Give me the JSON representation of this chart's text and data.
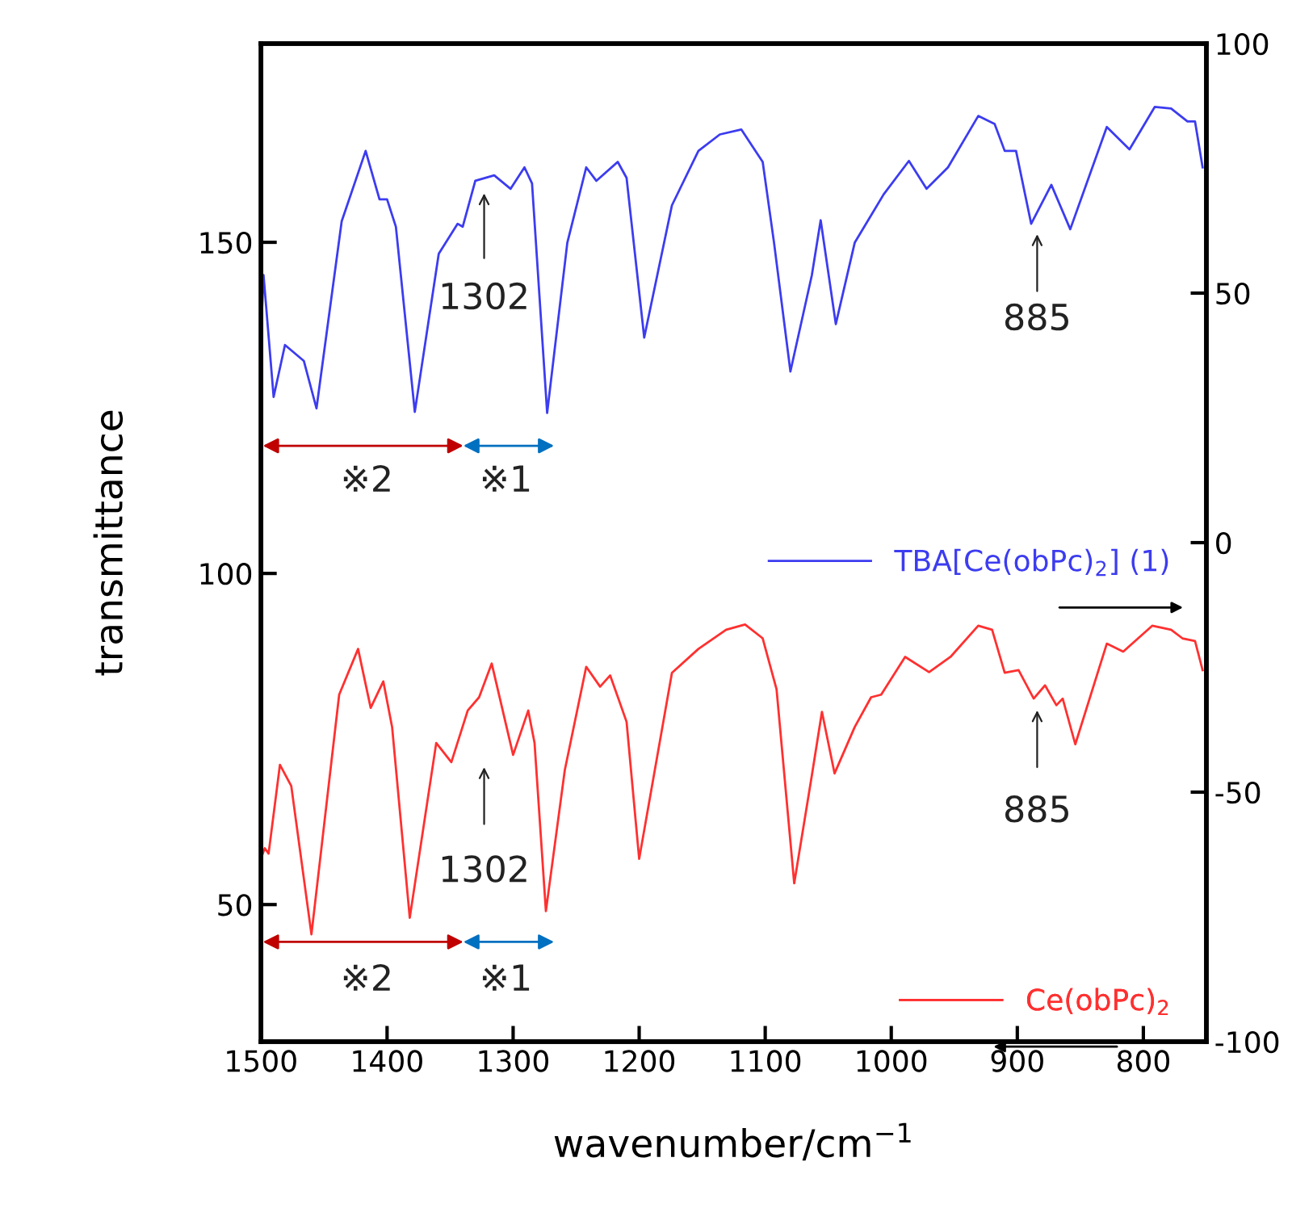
{
  "chart_data": {
    "type": "line",
    "xlabel": "wavenumber/cm$^{−1}$",
    "ylabel": "transmittance",
    "xlim": [
      1500,
      750
    ],
    "xticks": [
      1500,
      1400,
      1300,
      1200,
      1100,
      1000,
      900,
      800
    ],
    "ylim": [
      29.3,
      180
    ],
    "yticks": [
      50,
      100,
      150
    ],
    "y2lim": [
      -100,
      100
    ],
    "y2ticks": [
      -100,
      -50,
      0,
      50,
      100
    ],
    "legend": "right",
    "grid": false,
    "marker": "none",
    "line_style": "solid",
    "series": [
      {
        "name": "TBA[Ce(obPc)$_{2}$] (1)",
        "color": "#3c3cf0",
        "axis": "y2",
        "x": [
          1500,
          1498,
          1490,
          1481,
          1466,
          1456,
          1436,
          1417,
          1406,
          1400,
          1393,
          1378,
          1359,
          1344,
          1340,
          1330,
          1315,
          1302,
          1291,
          1285,
          1273,
          1257,
          1242,
          1234,
          1217,
          1210,
          1196,
          1174,
          1153,
          1136,
          1119,
          1102,
          1093,
          1080,
          1063,
          1056,
          1044,
          1029,
          1006,
          986,
          972,
          955,
          931,
          918,
          910,
          901,
          889,
          873,
          858,
          829,
          811,
          791,
          778,
          765,
          759,
          753
        ],
        "values": [
          42,
          53.6,
          29.2,
          39.6,
          36.4,
          26.9,
          64.4,
          78.5,
          68.8,
          68.8,
          63.3,
          26.2,
          57.9,
          63.9,
          63.3,
          72.5,
          73.6,
          70.9,
          75.2,
          72.0,
          26.0,
          60.1,
          75.2,
          72.5,
          76.3,
          73.1,
          41.1,
          67.6,
          78.5,
          81.8,
          82.8,
          76.3,
          60.1,
          34.3,
          53.6,
          64.6,
          43.8,
          60.1,
          69.8,
          76.5,
          70.9,
          75.2,
          85.5,
          83.9,
          78.5,
          78.5,
          63.9,
          71.7,
          62.8,
          83.3,
          78.8,
          87.3,
          87.0,
          84.4,
          84.4,
          75.2
        ]
      },
      {
        "name": "Ce(obPc)$_{2}$",
        "color": "#ff3030",
        "x": [
          1500,
          1497,
          1494,
          1485,
          1476,
          1460,
          1438,
          1423,
          1413,
          1403,
          1396,
          1382,
          1361,
          1349,
          1336,
          1327,
          1317,
          1300,
          1288,
          1283,
          1274,
          1259,
          1242,
          1231,
          1223,
          1210,
          1200,
          1174,
          1153,
          1131,
          1116,
          1102,
          1091,
          1077,
          1063,
          1055,
          1045,
          1029,
          1016,
          1008,
          989,
          970,
          953,
          931,
          920,
          910,
          899,
          887,
          878,
          869,
          864,
          854,
          829,
          816,
          793,
          778,
          769,
          759,
          753
        ],
        "values": [
          57,
          58.5,
          57.7,
          71.1,
          67.9,
          45.5,
          81.7,
          88.6,
          79.7,
          83.7,
          76.8,
          48.0,
          74.4,
          71.5,
          79.3,
          81.3,
          86.4,
          72.6,
          79.3,
          74.4,
          49.0,
          70.3,
          85.9,
          82.9,
          84.6,
          77.6,
          56.9,
          85.0,
          88.6,
          91.5,
          92.3,
          90.2,
          82.5,
          53.2,
          69.5,
          79.1,
          69.8,
          76.8,
          81.3,
          81.7,
          87.4,
          85.1,
          87.4,
          92.1,
          91.5,
          85.0,
          85.4,
          81.1,
          83.1,
          80.1,
          81.1,
          74.2,
          89.4,
          88.2,
          92.1,
          91.5,
          90.2,
          89.8,
          85.4
        ]
      }
    ],
    "annotations": [
      "1302",
      "885",
      "1302",
      "885",
      "※2",
      "※1",
      "※2",
      "※1"
    ]
  }
}
